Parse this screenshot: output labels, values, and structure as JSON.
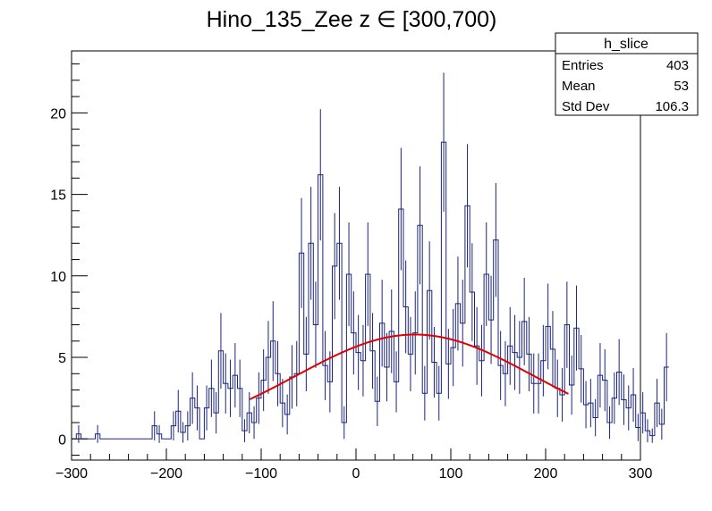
{
  "chart_data": {
    "type": "histogram",
    "title": "Hino_135_Zee z  ∈ [300,700)",
    "xlabel": "",
    "ylabel": "",
    "xlim": [
      -300,
      300
    ],
    "ylim": [
      -1.3,
      23.8
    ],
    "xticks": [
      -300,
      -200,
      -100,
      0,
      100,
      200,
      300
    ],
    "yticks": [
      0,
      5,
      10,
      15,
      20
    ],
    "grid": false,
    "bin_width": 5,
    "x_start": -300,
    "values": [
      0,
      0.3,
      0,
      0,
      0,
      0.3,
      0,
      0,
      0,
      0,
      0,
      0,
      0,
      0,
      0,
      0,
      0,
      0.8,
      0.3,
      0,
      0,
      0.8,
      1.7,
      0.4,
      0.8,
      2.5,
      1.9,
      0,
      1.9,
      3.1,
      1.6,
      5.4,
      3.4,
      3.1,
      3.9,
      3.1,
      0.5,
      1.6,
      1.0,
      2.5,
      3.6,
      5.0,
      6.0,
      4.0,
      2.2,
      1.5,
      3.8,
      4.0,
      11.4,
      5.2,
      12.0,
      7.0,
      16.2,
      4.5,
      3.5,
      10.6,
      12.0,
      1.0,
      10.1,
      6.5,
      5.3,
      4.8,
      10.1,
      5.4,
      2.3,
      7.1,
      4.4,
      6.6,
      3.5,
      14.1,
      8.1,
      5.2,
      6.5,
      13.1,
      2.8,
      9.1,
      4.7,
      2.8,
      18.2,
      4.6,
      5.6,
      8.3,
      7.1,
      14.3,
      9.0,
      5.7,
      4.8,
      10.1,
      7.3,
      12.2,
      4.5,
      4.0,
      5.7,
      5.3,
      5.0,
      7.2,
      5.2,
      3.4,
      3.4,
      4.8,
      6.9,
      5.5,
      3.1,
      2.7,
      7.0,
      3.3,
      6.8,
      4.3,
      2.1,
      2.2,
      1.3,
      3.9,
      3.6,
      1.0,
      2.5,
      4.1,
      2.4,
      1.9,
      2.7,
      0.7,
      1.6,
      0.5,
      0.2,
      2.2,
      0.9,
      4.4
    ],
    "fit": {
      "name": "Gaussian fit",
      "x_range": [
        -112,
        224
      ],
      "amplitude": 6.4,
      "mean": 62,
      "sigma": 125
    },
    "colors": {
      "histogram": "#1a237e",
      "fit": "#e00000"
    }
  },
  "stats": {
    "name": "h_slice",
    "rows": [
      {
        "label": "Entries",
        "value": "403"
      },
      {
        "label": "Mean",
        "value": "53"
      },
      {
        "label": "Std Dev",
        "value": "106.3"
      }
    ]
  }
}
